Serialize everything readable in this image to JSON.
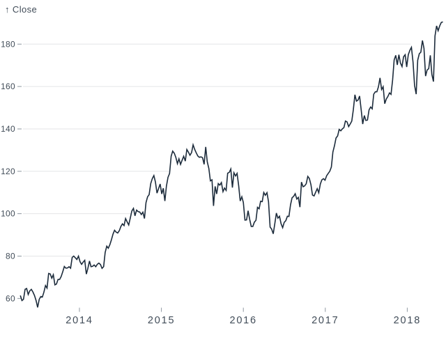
{
  "chart_data": {
    "type": "line",
    "title": "",
    "y_axis_arrow": "↑",
    "y_axis_label": "Close",
    "series_name": "Close",
    "cadence": "weekly",
    "x_range_years": [
      2013.279,
      2018.435
    ],
    "ylim": [
      55,
      192
    ],
    "x_tick_years": [
      2014,
      2015,
      2016,
      2017,
      2018
    ],
    "y_ticks": [
      60,
      80,
      100,
      120,
      140,
      160,
      180
    ],
    "grid": "horizontal-only, each gridline drawn from axis until it meets the price line",
    "legend": "none",
    "colors": {
      "line": "#1c2b3b",
      "grid": "#e4e5e7",
      "tick": "#8f98a1",
      "text": "#414c58",
      "background": "#ffffff"
    },
    "series": [
      {
        "name": "Close",
        "values": [
          61.4,
          59.0,
          59.6,
          64.3,
          64.7,
          61.9,
          63.6,
          64.3,
          63.1,
          61.4,
          59.1,
          55.8,
          59.6,
          60.9,
          60.7,
          63.0,
          66.1,
          64.9,
          71.8,
          71.6,
          69.6,
          71.2,
          66.4,
          66.8,
          69.0,
          69.0,
          70.4,
          72.7,
          75.1,
          74.3,
          74.4,
          75.0,
          74.3,
          79.4,
          80.0,
          79.2,
          78.4,
          80.0,
          77.3,
          76.1,
          77.2,
          78.0,
          71.5,
          74.2,
          77.7,
          75.0,
          75.2,
          75.8,
          75.0,
          76.1,
          76.7,
          76.0,
          74.2,
          75.0,
          81.7,
          84.7,
          83.7,
          85.4,
          87.7,
          90.4,
          92.2,
          91.3,
          90.9,
          92.0,
          94.0,
          95.2,
          94.4,
          97.7,
          96.1,
          94.7,
          98.0,
          101.3,
          102.5,
          99.0,
          101.7,
          101.0,
          100.8,
          99.6,
          100.7,
          97.7,
          105.2,
          108.0,
          109.0,
          114.2,
          116.5,
          118.0,
          115.0,
          109.7,
          111.8,
          114.0,
          109.3,
          112.0,
          106.0,
          113.0,
          117.2,
          118.9,
          127.1,
          129.5,
          128.5,
          126.6,
          123.6,
          125.9,
          123.3,
          125.3,
          127.1,
          124.8,
          130.3,
          129.0,
          127.6,
          128.8,
          132.5,
          130.3,
          128.7,
          127.2,
          126.6,
          126.8,
          126.4,
          123.3,
          131.5,
          124.5,
          121.3,
          115.5,
          116.0,
          103.7,
          112.9,
          109.3,
          114.2,
          113.5,
          114.7,
          110.4,
          112.1,
          111.0,
          119.1,
          119.5,
          121.1,
          112.3,
          119.3,
          117.8,
          119.0,
          113.2,
          106.0,
          108.0,
          105.3,
          97.0,
          97.1,
          101.4,
          97.3,
          94.0,
          94.0,
          96.0,
          96.9,
          103.0,
          102.3,
          105.9,
          105.7,
          110.0,
          108.7,
          109.9,
          105.7,
          93.7,
          92.7,
          90.5,
          95.2,
          100.3,
          97.9,
          98.8,
          95.3,
          93.4,
          95.9,
          96.7,
          98.8,
          98.7,
          104.2,
          107.5,
          108.2,
          109.4,
          106.9,
          107.7,
          103.1,
          114.9,
          112.7,
          113.1,
          114.1,
          117.6,
          116.6,
          113.7,
          108.8,
          108.4,
          110.1,
          111.8,
          109.9,
          114.0,
          116.0,
          116.5,
          115.8,
          117.9,
          119.0,
          120.0,
          122.0,
          129.1,
          132.1,
          135.7,
          136.7,
          139.8,
          139.1,
          140.0,
          140.6,
          143.7,
          143.3,
          141.1,
          142.3,
          143.7,
          149.0,
          156.1,
          153.1,
          153.6,
          155.5,
          149.0,
          142.3,
          146.3,
          144.0,
          144.2,
          149.0,
          150.3,
          149.5,
          156.4,
          157.5,
          157.5,
          159.9,
          164.1,
          158.6,
          159.9,
          151.9,
          154.1,
          155.3,
          157.0,
          156.3,
          163.1,
          172.5,
          174.7,
          170.2,
          175.0,
          171.1,
          169.4,
          174.0,
          175.0,
          169.2,
          175.0,
          177.1,
          178.5,
          171.5,
          160.5,
          156.4,
          172.4,
          175.5,
          176.2,
          181.7,
          178.0,
          164.9,
          167.8,
          168.4,
          174.7,
          165.7,
          162.3,
          183.8,
          188.6,
          186.3,
          188.6,
          190.2,
          190.5
        ]
      }
    ]
  }
}
